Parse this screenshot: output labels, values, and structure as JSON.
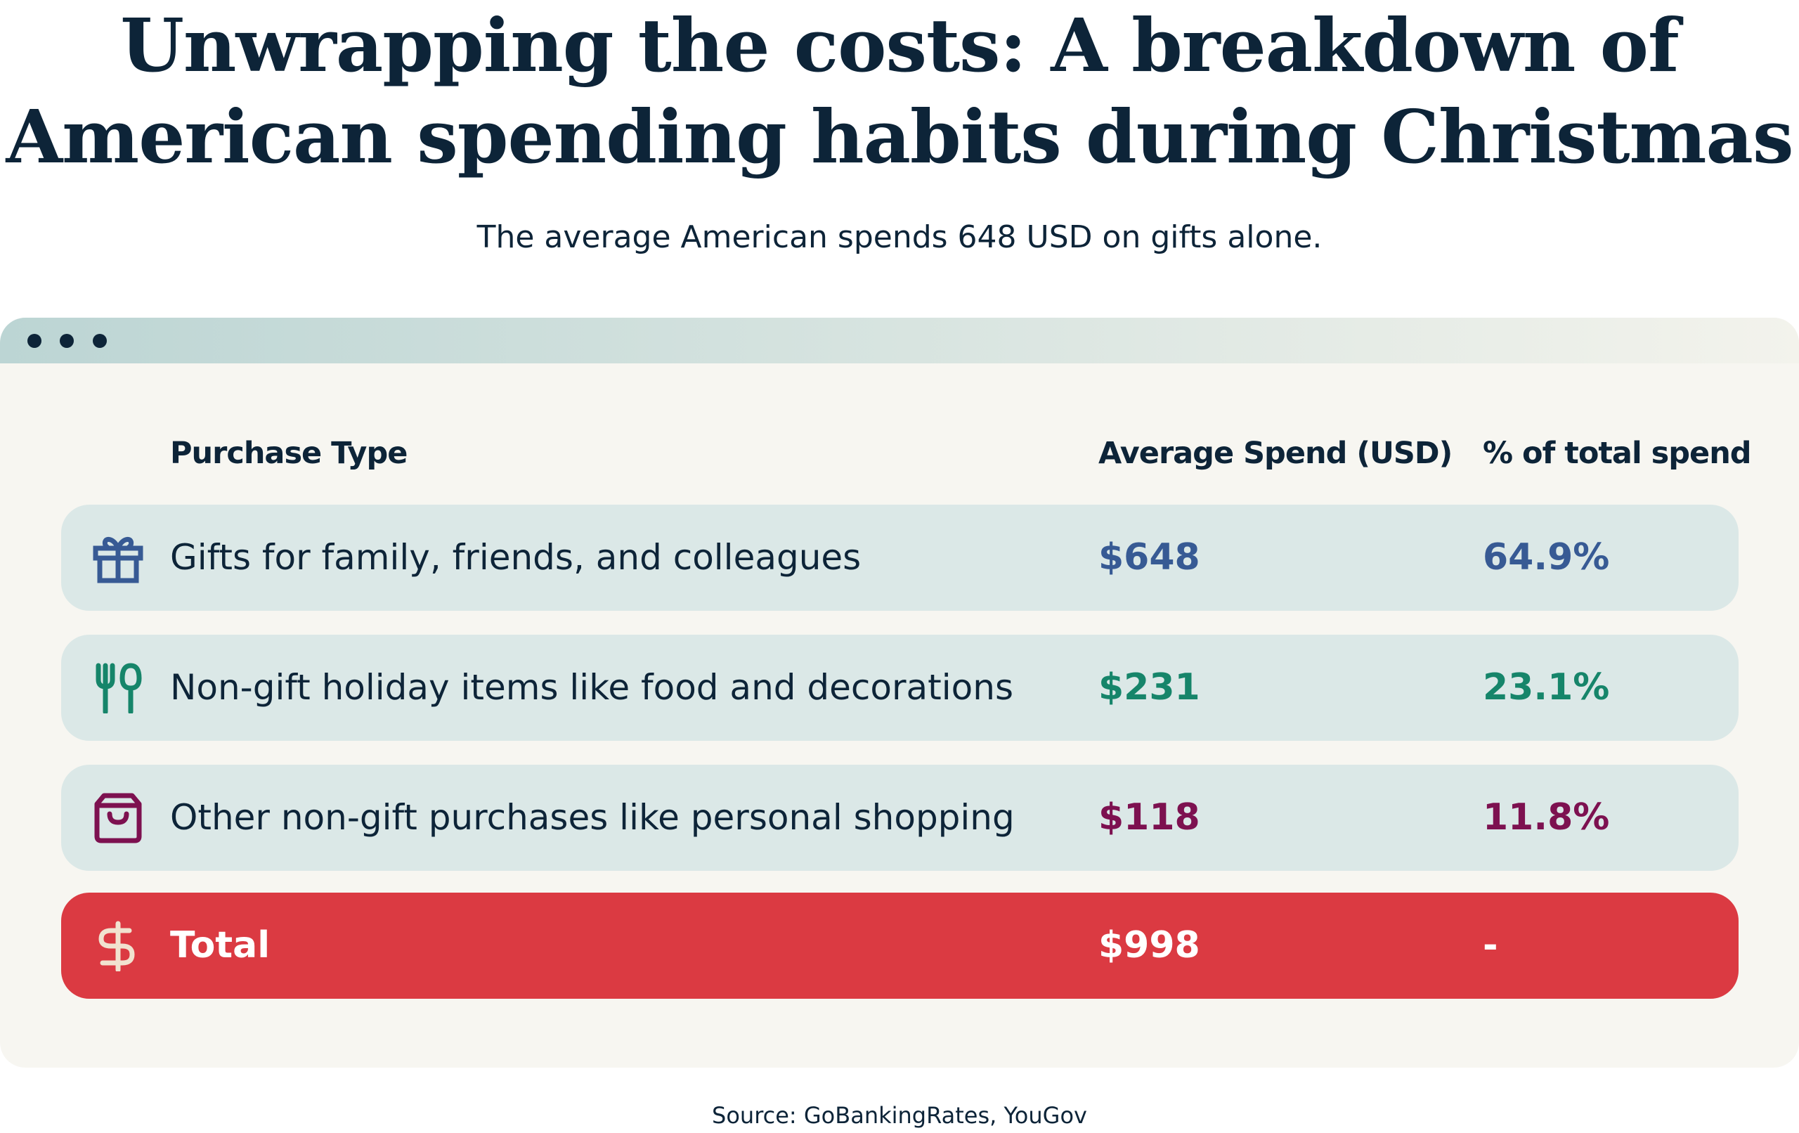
{
  "title": {
    "line1": "Unwrapping the costs: A breakdown of",
    "line2": "American spending habits during Christmas"
  },
  "subtitle": "The average American spends 648 USD on gifts alone.",
  "table": {
    "headers": [
      "Purchase Type",
      "Average Spend (USD)",
      "% of total spend"
    ],
    "rows": [
      {
        "icon": "gift-icon",
        "label": "Gifts for family, friends, and colleagues",
        "spend": "$648",
        "percent": "64.9%",
        "color": "#375a94"
      },
      {
        "icon": "fork-spoon-icon",
        "label": "Non-gift holiday items like food and decorations",
        "spend": "$231",
        "percent": "23.1%",
        "color": "#16856a"
      },
      {
        "icon": "shopping-bag-icon",
        "label": "Other non-gift purchases like personal shopping",
        "spend": "$118",
        "percent": "11.8%",
        "color": "#7d1150"
      }
    ],
    "total": {
      "icon": "dollar-icon",
      "label": "Total",
      "spend": "$998",
      "percent": "-",
      "color": "#db3a42"
    }
  },
  "source": "Source: GoBankingRates, YouGov"
}
